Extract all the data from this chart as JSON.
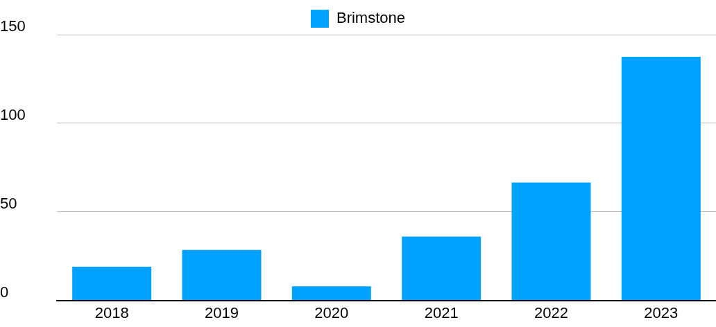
{
  "chart_data": {
    "type": "bar",
    "categories": [
      "2018",
      "2019",
      "2020",
      "2021",
      "2022",
      "2023"
    ],
    "series": [
      {
        "name": "Brimstone",
        "color": "#00a2ff",
        "values": [
          19,
          28.5,
          8,
          36,
          66.5,
          137.5
        ]
      }
    ],
    "ylim": [
      0,
      150
    ],
    "yticks": [
      0,
      50,
      100,
      150
    ],
    "grid": "y",
    "legend": "top"
  }
}
